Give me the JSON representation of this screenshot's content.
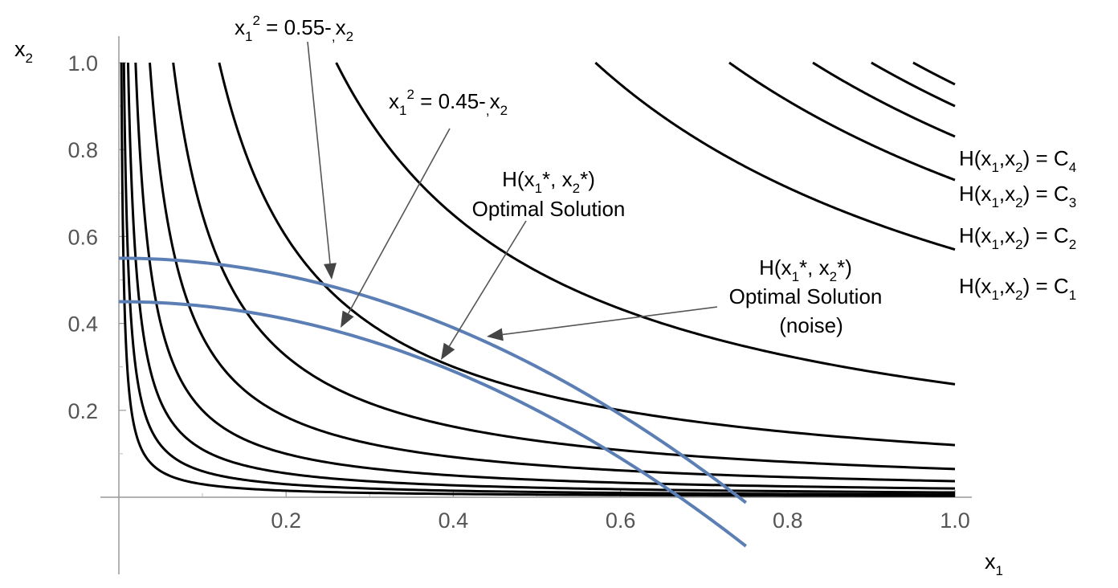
{
  "chart_data": {
    "type": "line",
    "x_axis_label": "x",
    "x_axis_sub": "1",
    "y_axis_label": "x",
    "y_axis_sub": "2",
    "xlim": [
      0,
      1.0
    ],
    "ylim": [
      0,
      1.0
    ],
    "x_ticks": [
      {
        "value": 0.2,
        "label": "0.2"
      },
      {
        "value": 0.4,
        "label": "0.4"
      },
      {
        "value": 0.6,
        "label": "0.6"
      },
      {
        "value": 0.8,
        "label": "0.8"
      },
      {
        "value": 1.0,
        "label": "1.0"
      }
    ],
    "y_ticks": [
      {
        "value": 0.2,
        "label": "0.2"
      },
      {
        "value": 0.4,
        "label": "0.4"
      },
      {
        "value": 0.6,
        "label": "0.6"
      },
      {
        "value": 0.8,
        "label": "0.8"
      },
      {
        "value": 1.0,
        "label": "1.0"
      }
    ],
    "grid": false,
    "level_curve_color": "#000000",
    "constraint_color": "#5b7fb5",
    "level_curves": [
      {
        "k": 0.003
      },
      {
        "k": 0.006
      },
      {
        "k": 0.011
      },
      {
        "k": 0.02
      },
      {
        "k": 0.037
      },
      {
        "k": 0.065
      },
      {
        "k": 0.12
      },
      {
        "k": 0.26
      },
      {
        "k": 0.57
      },
      {
        "k": 0.73
      },
      {
        "k": 0.83
      },
      {
        "k": 0.9
      },
      {
        "k": 0.95
      }
    ],
    "constraints": [
      {
        "c": 0.55,
        "x_max": 0.75
      },
      {
        "c": 0.45,
        "x_max": 0.75
      }
    ],
    "annotations": {
      "eq_055": {
        "base": "x",
        "sub": "1",
        "sup": "2",
        "rest": " = 0.55-",
        "sub2": ",",
        "var": "x",
        "sub3": "2"
      },
      "eq_045": {
        "base": "x",
        "sub": "1",
        "sup": "2",
        "rest": " = 0.45-",
        "sub2": ",",
        "var": "x",
        "sub3": "2"
      },
      "opt_line1_a": "H(x",
      "opt_line1_b": "1",
      "opt_line1_c": "*, x",
      "opt_line1_d": "2",
      "opt_line1_e": "*)",
      "opt_line2": "Optimal Solution",
      "noise_line3": "(noise)",
      "H_prefix": "H(x",
      "H_sub1": "1",
      "H_mid": ",x",
      "H_sub2": "2",
      "H_eq": ") = C",
      "C_labels": [
        "4",
        "3",
        "2",
        "1"
      ]
    }
  }
}
